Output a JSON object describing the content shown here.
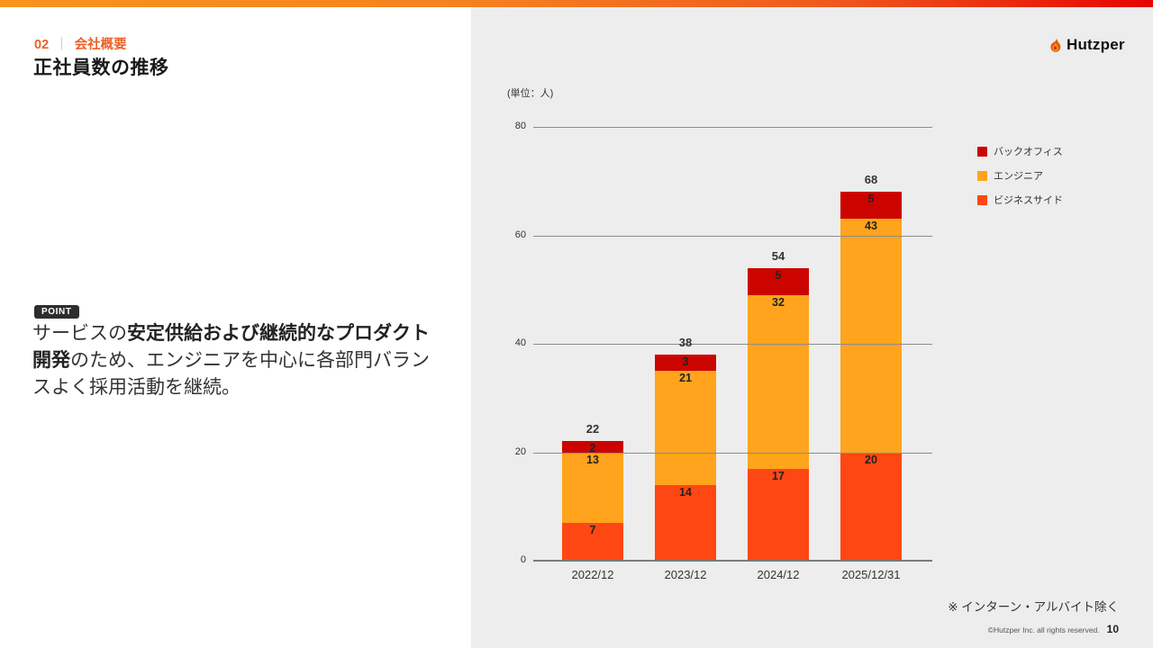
{
  "slide": {
    "kicker_number": "02",
    "kicker_separator": "｜",
    "kicker_label": "会社概要",
    "title": "正社員数の推移",
    "point_badge": "POINT",
    "point_lines": [
      [
        {
          "t": "サービスの",
          "b": 0
        },
        {
          "t": "安定供給および継続的なプロダクト",
          "b": 1
        }
      ],
      [
        {
          "t": "開発",
          "b": 1
        },
        {
          "t": "のため、エンジニアを中心に各部門バラン",
          "b": 0
        }
      ],
      [
        {
          "t": "スよく採用活動を継続。",
          "b": 0
        }
      ]
    ],
    "logo_text": "Hutzper",
    "footnote": "※ インターン・アルバイト除く",
    "copyright": "©Hutzper Inc. all rights reserved.",
    "page_number": "10"
  },
  "chart_data": {
    "type": "bar",
    "stacked": true,
    "unit_label": "(単位：人)",
    "categories": [
      "2022/12",
      "2023/12",
      "2024/12",
      "2025/12/31"
    ],
    "series": [
      {
        "name": "ビジネスサイド",
        "color": "#FF4713",
        "values": [
          7,
          14,
          17,
          20
        ]
      },
      {
        "name": "エンジニア",
        "color": "#FFA41C",
        "values": [
          13,
          21,
          32,
          43
        ]
      },
      {
        "name": "バックオフィス",
        "color": "#CC0400",
        "values": [
          2,
          3,
          5,
          5
        ]
      }
    ],
    "totals": [
      22,
      38,
      54,
      68
    ],
    "ylim": [
      0,
      80
    ],
    "yticks": [
      0,
      20,
      40,
      60,
      80
    ],
    "grid": true,
    "legend_position": "right",
    "legend_order_top_to_bottom": [
      "バックオフィス",
      "エンジニア",
      "ビジネスサイド"
    ]
  },
  "colors": {
    "accent_orange": "#EE6028",
    "topbar_gradient_left": "#F7941E",
    "topbar_gradient_right": "#E60500",
    "panel_background": "#EDEDED",
    "backoffice": "#CC0400",
    "engineer": "#FFA41C",
    "business": "#FF4713",
    "point_badge_bg": "#2D2D2D"
  }
}
